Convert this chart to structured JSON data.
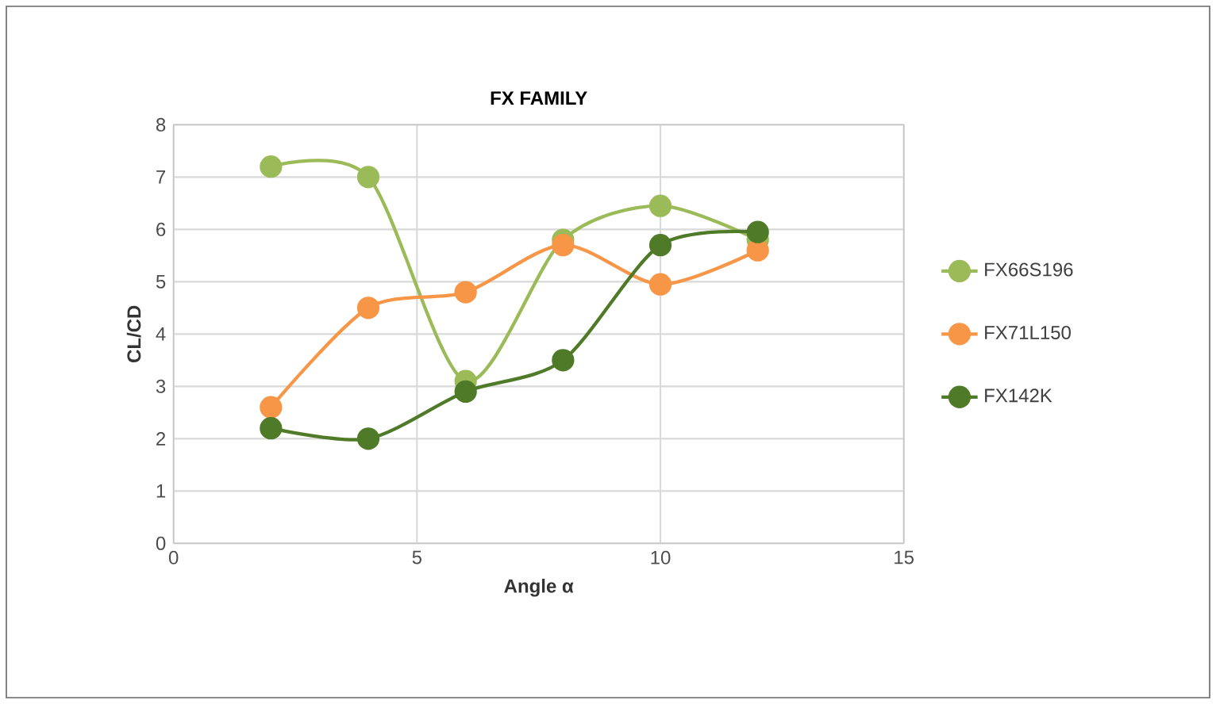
{
  "chart_data": {
    "type": "line",
    "title": "FX FAMILY",
    "xlabel": "Angle α",
    "ylabel": "CL/CD",
    "x": [
      2,
      4,
      6,
      8,
      10,
      12
    ],
    "series": [
      {
        "name": "FX66S196",
        "color": "#9bbb59",
        "values": [
          7.2,
          7.0,
          3.1,
          5.8,
          6.45,
          5.8
        ]
      },
      {
        "name": "FX71L150",
        "color": "#f79646",
        "values": [
          2.6,
          4.5,
          4.8,
          5.7,
          4.95,
          5.6
        ]
      },
      {
        "name": "FX142K",
        "color": "#4f7a28",
        "values": [
          2.2,
          2.0,
          2.9,
          3.5,
          5.7,
          5.95
        ]
      }
    ],
    "xlim": [
      0,
      15
    ],
    "xticks": [
      0,
      5,
      10,
      15
    ],
    "ylim": [
      0,
      8
    ],
    "yticks": [
      0,
      1,
      2,
      3,
      4,
      5,
      6,
      7,
      8
    ],
    "grid": true,
    "legend": "right",
    "marker": "circle",
    "line_style": "solid"
  }
}
